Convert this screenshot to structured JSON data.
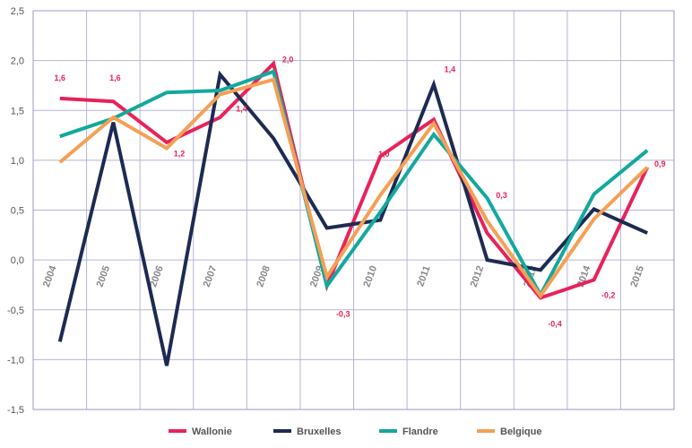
{
  "chart_data": {
    "type": "line",
    "title": "",
    "xlabel": "",
    "ylabel": "",
    "x": [
      "2004",
      "2005",
      "2006",
      "2007",
      "2008",
      "2009",
      "2010",
      "2011",
      "2012",
      "2013",
      "2014",
      "2015"
    ],
    "ylim": [
      -1.5,
      2.5
    ],
    "yticks": [
      "2,5",
      "2,0",
      "1,5",
      "1,0",
      "0,5",
      "0,0",
      "-0,5",
      "-1,0",
      "-1,5"
    ],
    "grid": true,
    "legend_position": "bottom",
    "series": [
      {
        "name": "Wallonie",
        "color": "#e8225a",
        "values": [
          1.62,
          1.59,
          1.18,
          1.43,
          1.97,
          -0.26,
          1.04,
          1.41,
          0.27,
          -0.38,
          -0.2,
          0.93
        ]
      },
      {
        "name": "Bruxelles",
        "color": "#1d2b53",
        "values": [
          -0.82,
          1.38,
          -1.06,
          1.86,
          1.22,
          0.32,
          0.4,
          1.76,
          0.0,
          -0.1,
          0.51,
          0.27
        ]
      },
      {
        "name": "Flandre",
        "color": "#13a89e",
        "values": [
          1.24,
          1.42,
          1.68,
          1.7,
          1.89,
          -0.26,
          0.48,
          1.26,
          0.62,
          -0.35,
          0.66,
          1.1
        ]
      },
      {
        "name": "Belgique",
        "color": "#f4a055",
        "values": [
          0.98,
          1.43,
          1.12,
          1.66,
          1.81,
          -0.17,
          0.65,
          1.37,
          0.39,
          -0.36,
          0.41,
          0.93
        ]
      }
    ],
    "data_labels": [
      {
        "x_index": 0,
        "text": "1,6",
        "value": 1.6
      },
      {
        "x_index": 1,
        "text": "1,6",
        "value": 1.6
      },
      {
        "x_index": 2,
        "text": "1,2",
        "value": 1.2
      },
      {
        "x_index": 3,
        "text": "1,4",
        "value": 1.4
      },
      {
        "x_index": 4,
        "text": "2,0",
        "value": 2.0
      },
      {
        "x_index": 5,
        "text": "-0,3",
        "value": -0.3
      },
      {
        "x_index": 6,
        "text": "1,0",
        "value": 1.0
      },
      {
        "x_index": 7,
        "text": "1,4",
        "value": 1.4
      },
      {
        "x_index": 8,
        "text": "0,3",
        "value": 0.3
      },
      {
        "x_index": 9,
        "text": "-0,4",
        "value": -0.4
      },
      {
        "x_index": 10,
        "text": "-0,2",
        "value": -0.2
      },
      {
        "x_index": 11,
        "text": "0,9",
        "value": 0.9
      }
    ]
  }
}
